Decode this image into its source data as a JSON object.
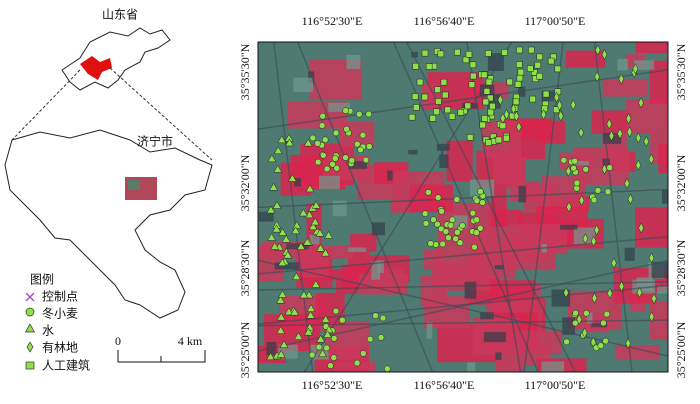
{
  "inset": {
    "province": "山东省",
    "city": "济宁市"
  },
  "legend": {
    "title": "图例",
    "items": [
      "控制点",
      "冬小麦",
      "水",
      "有林地",
      "人工建筑"
    ]
  },
  "scale": {
    "start": "0",
    "end": "4 km"
  },
  "longitudes": [
    "116°52'30\"E",
    "116°56'40\"E",
    "117°00'50\"E"
  ],
  "latitudes": [
    "35°35'30\"N",
    "35°32'00\"N",
    "35°28'30\"N",
    "35°25'00\"N"
  ]
}
